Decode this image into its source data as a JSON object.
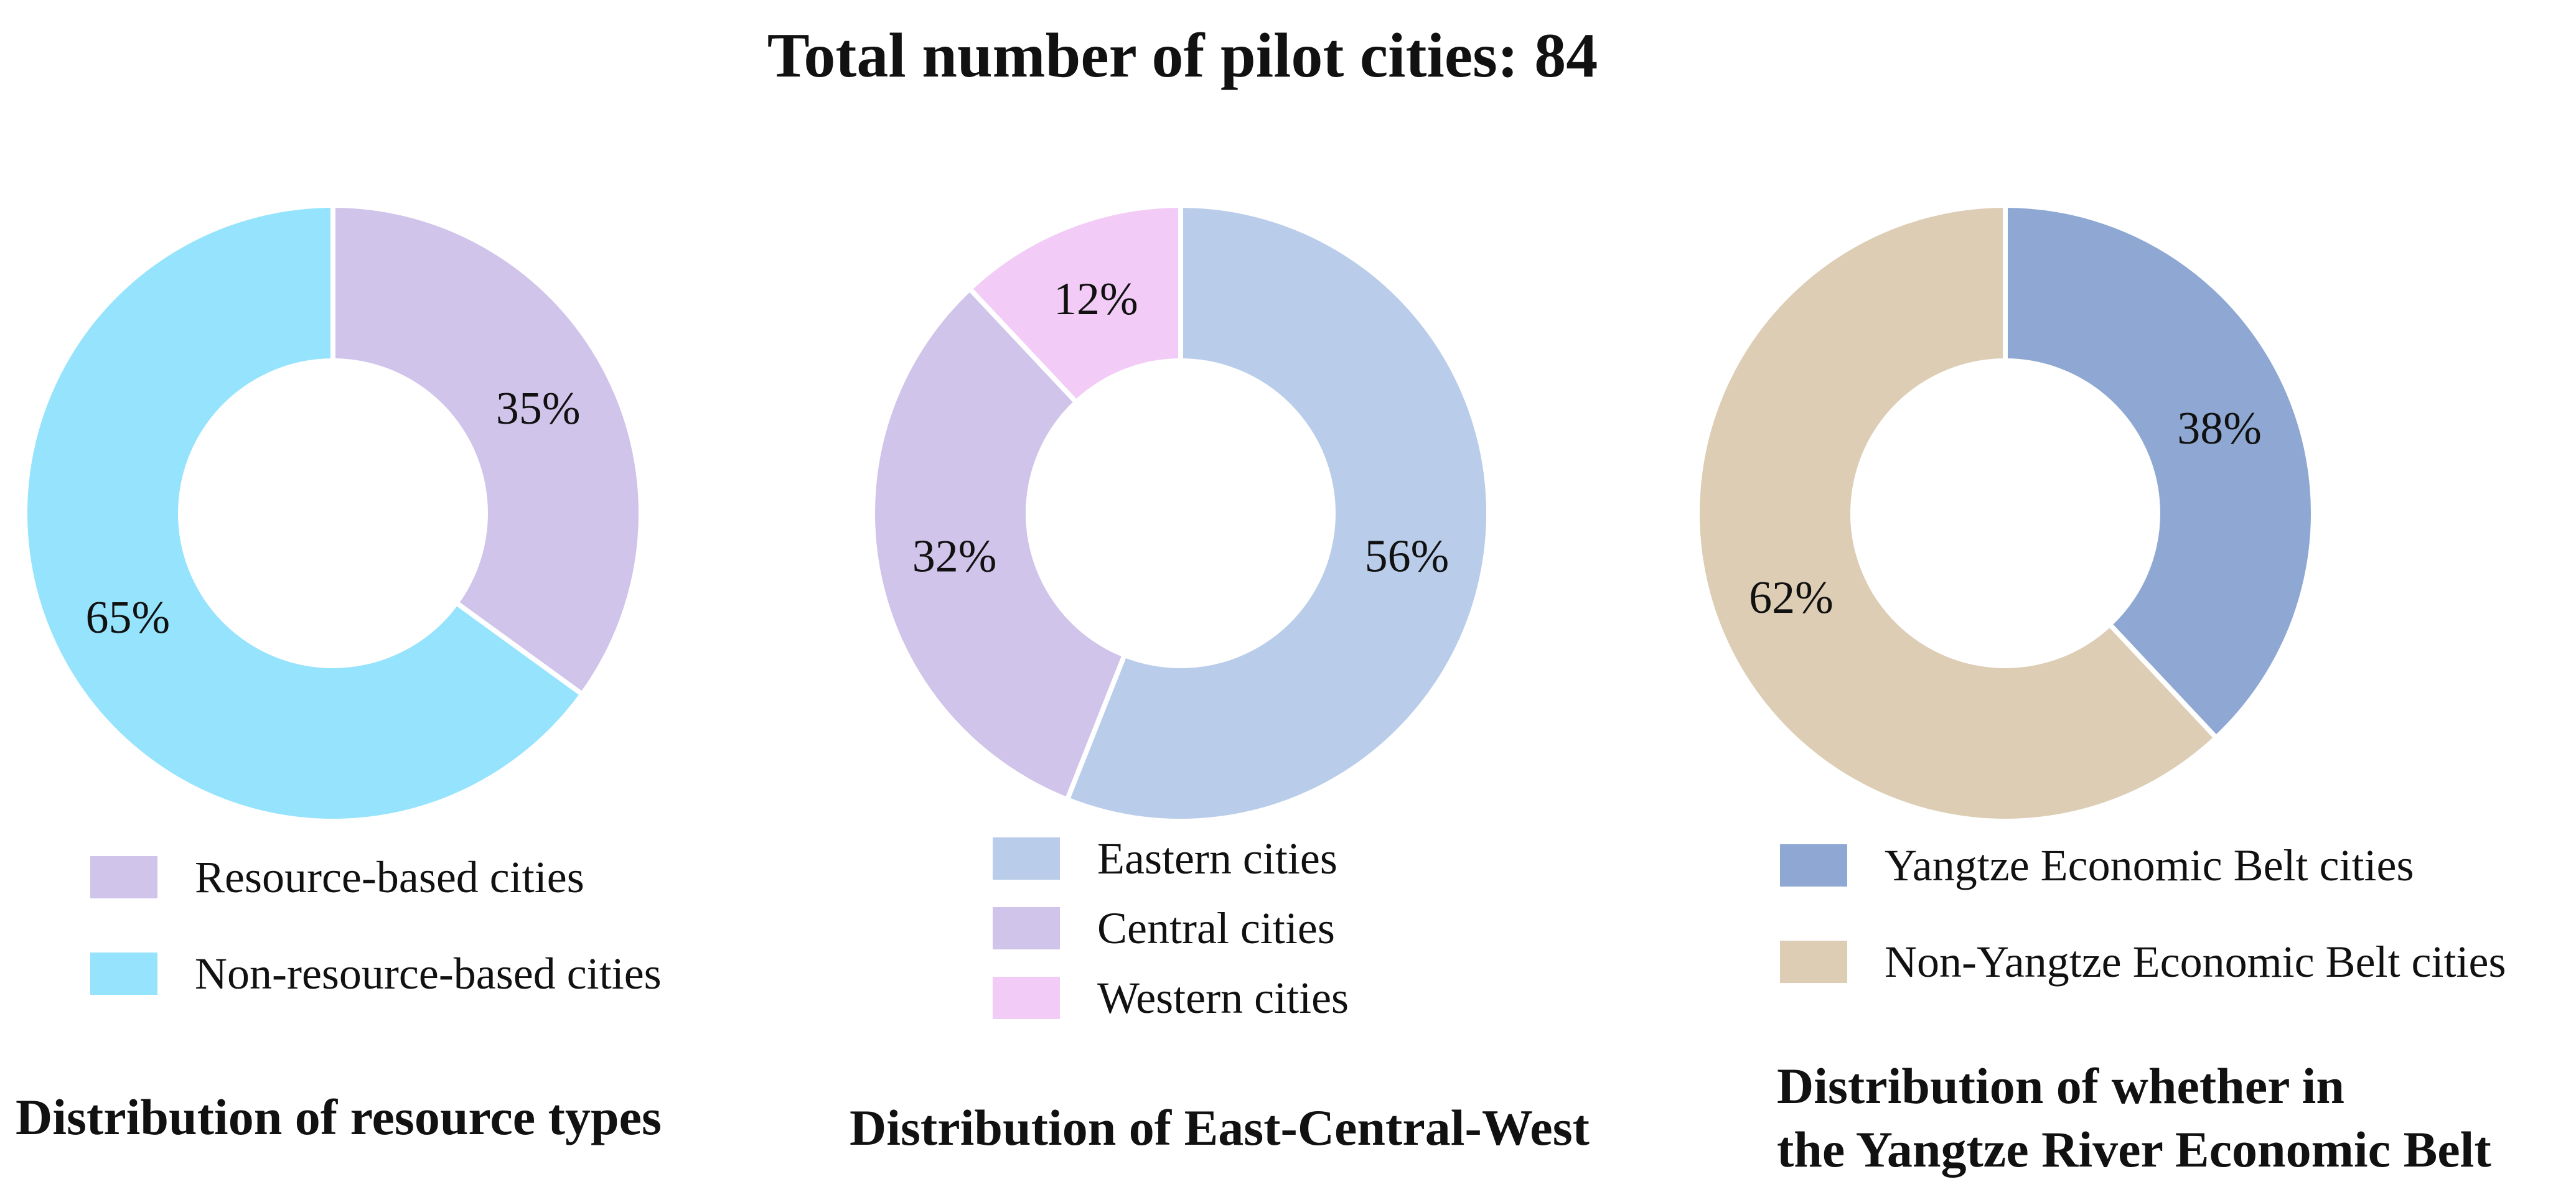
{
  "title": "Total number of pilot cities: 84",
  "chart_data": [
    {
      "type": "pie",
      "title": "Distribution of resource types",
      "slices": [
        {
          "name": "Resource-based cities",
          "value": 35,
          "label": "35%",
          "color": "#D0C4EA"
        },
        {
          "name": "Non-resource-based cities",
          "value": 65,
          "label": "65%",
          "color": "#95E3FC"
        }
      ]
    },
    {
      "type": "pie",
      "title": "Distribution of East-Central-West",
      "slices": [
        {
          "name": "Eastern cities",
          "value": 56,
          "label": "56%",
          "color": "#B9CDEA"
        },
        {
          "name": "Central cities",
          "value": 32,
          "label": "32%",
          "color": "#D0C4EA"
        },
        {
          "name": "Western cities",
          "value": 12,
          "label": "12%",
          "color": "#F2CBF6"
        }
      ]
    },
    {
      "type": "pie",
      "title": "Distribution of whether in the Yangtze River Economic Belt",
      "title_lines": [
        "Distribution of whether in",
        "the Yangtze River Economic Belt"
      ],
      "slices": [
        {
          "name": "Yangtze Economic Belt cities",
          "value": 38,
          "label": "38%",
          "color": "#8EA8D3"
        },
        {
          "name": "Non-Yangtze Economic Belt cities",
          "value": 62,
          "label": "62%",
          "color": "#DCCDB4"
        }
      ]
    }
  ]
}
